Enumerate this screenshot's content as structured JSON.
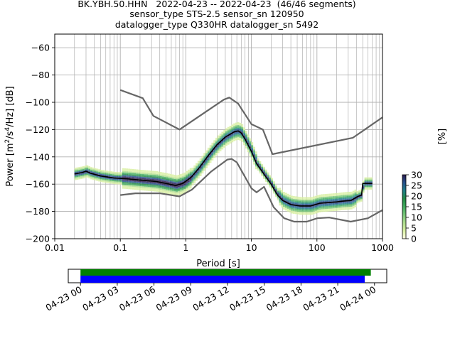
{
  "chart_data": {
    "type": "heatmap",
    "title_lines": [
      "BK.YBH.50.HHN   2022-04-23 -- 2022-04-23  (46/46 segments)",
      "sensor_type STS-2.5 sensor_sn 120950",
      "datalogger_type Q330HR datalogger_sn 5492"
    ],
    "xlabel": "Period [s]",
    "ylabel_parts": [
      "Power [m",
      "2",
      "/s",
      "4",
      "/Hz] [dB]"
    ],
    "x_scale": "log",
    "xlim": [
      0.01,
      1000
    ],
    "ylim": [
      -200,
      -50
    ],
    "x_ticks": [
      {
        "value": 0.01,
        "label": "0.01"
      },
      {
        "value": 0.1,
        "label": "0.1"
      },
      {
        "value": 1,
        "label": "1"
      },
      {
        "value": 10,
        "label": "10"
      },
      {
        "value": 100,
        "label": "100"
      },
      {
        "value": 1000,
        "label": "1000"
      }
    ],
    "y_ticks": [
      {
        "value": -60,
        "label": "−60"
      },
      {
        "value": -80,
        "label": "−80"
      },
      {
        "value": -100,
        "label": "−100"
      },
      {
        "value": -120,
        "label": "−120"
      },
      {
        "value": -140,
        "label": "−140"
      },
      {
        "value": -160,
        "label": "−160"
      },
      {
        "value": -180,
        "label": "−180"
      },
      {
        "value": -200,
        "label": "−200"
      }
    ],
    "grid": true,
    "colorbar": {
      "label": "[%]",
      "range": [
        0,
        30
      ],
      "ticks": [
        {
          "value": 0,
          "label": "0"
        },
        {
          "value": 5,
          "label": "5"
        },
        {
          "value": 10,
          "label": "10"
        },
        {
          "value": 15,
          "label": "15"
        },
        {
          "value": 20,
          "label": "20"
        },
        {
          "value": 25,
          "label": "25"
        },
        {
          "value": 30,
          "label": "30"
        }
      ],
      "colors": [
        "#ffffe5",
        "#d9f0a3",
        "#addd8e",
        "#78c679",
        "#41ab5d",
        "#238b45",
        "#1f7f85",
        "#25508c",
        "#2b1a4d"
      ]
    },
    "noise_model_color": "#666666",
    "high_noise_model": [
      [
        0.1,
        -91
      ],
      [
        0.22,
        -97
      ],
      [
        0.32,
        -110
      ],
      [
        0.8,
        -120
      ],
      [
        3.8,
        -98
      ],
      [
        4.6,
        -96.5
      ],
      [
        6.3,
        -101
      ],
      [
        7.1,
        -105
      ],
      [
        10,
        -116
      ],
      [
        15,
        -120
      ],
      [
        21,
        -138
      ],
      [
        354,
        -126
      ],
      [
        1000,
        -111
      ]
    ],
    "low_noise_model": [
      [
        0.1,
        -168
      ],
      [
        0.17,
        -166.7
      ],
      [
        0.4,
        -166.7
      ],
      [
        0.8,
        -169
      ],
      [
        1.24,
        -164
      ],
      [
        2.4,
        -151
      ],
      [
        4.3,
        -142
      ],
      [
        5,
        -141.5
      ],
      [
        6,
        -144
      ],
      [
        10,
        -163
      ],
      [
        12,
        -166
      ],
      [
        15.6,
        -162
      ],
      [
        21.9,
        -177
      ],
      [
        31.6,
        -185
      ],
      [
        45,
        -187.5
      ],
      [
        70,
        -187.5
      ],
      [
        101,
        -185
      ],
      [
        154,
        -184.5
      ],
      [
        328,
        -187.5
      ],
      [
        600,
        -185
      ],
      [
        1000,
        -179
      ]
    ],
    "mode_line_color": "#000000",
    "mode_line": [
      [
        0.02,
        -152.5
      ],
      [
        0.026,
        -151.5
      ],
      [
        0.03,
        -150.5
      ],
      [
        0.035,
        -152
      ],
      [
        0.05,
        -154
      ],
      [
        0.08,
        -155.5
      ],
      [
        0.12,
        -156
      ],
      [
        0.2,
        -157
      ],
      [
        0.35,
        -158
      ],
      [
        0.5,
        -159.5
      ],
      [
        0.7,
        -161
      ],
      [
        0.9,
        -159.5
      ],
      [
        1.2,
        -155
      ],
      [
        1.6,
        -148
      ],
      [
        2.2,
        -139
      ],
      [
        3,
        -131
      ],
      [
        4,
        -125.5
      ],
      [
        5.5,
        -121.5
      ],
      [
        6.3,
        -121
      ],
      [
        7,
        -122.5
      ],
      [
        8,
        -127
      ],
      [
        10,
        -136
      ],
      [
        12,
        -145
      ],
      [
        16,
        -153.5
      ],
      [
        20,
        -160
      ],
      [
        25,
        -168
      ],
      [
        30,
        -172
      ],
      [
        40,
        -175
      ],
      [
        55,
        -176
      ],
      [
        80,
        -176
      ],
      [
        110,
        -174
      ],
      [
        150,
        -173.5
      ],
      [
        200,
        -173
      ],
      [
        240,
        -172.5
      ],
      [
        330,
        -172
      ],
      [
        420,
        -169
      ],
      [
        480,
        -168
      ],
      [
        500,
        -159.5
      ],
      [
        700,
        -159.5
      ]
    ],
    "density_bands": [
      {
        "x_from": 0.1,
        "x_to": 1.2,
        "center_dy": [
          [
            0.1,
            -157
          ],
          [
            0.4,
            -158.5
          ],
          [
            0.9,
            -160
          ]
        ],
        "spread": 7
      },
      {
        "x_from": 1.2,
        "x_to": 12,
        "center_dy": [
          [
            1.2,
            -154
          ],
          [
            3,
            -131
          ],
          [
            6.3,
            -121
          ],
          [
            10,
            -136
          ]
        ],
        "spread": 6
      },
      {
        "x_from": 25,
        "x_to": 400,
        "center_dy": [
          [
            25,
            -168
          ],
          [
            60,
            -176
          ],
          [
            200,
            -173
          ],
          [
            400,
            -170
          ]
        ],
        "spread": 6
      }
    ],
    "segment_timeline": {
      "xlim_hours": [
        -1,
        25
      ],
      "green_bar_hours": [
        0,
        23.7
      ],
      "blue_bar_hours": [
        0,
        23.2
      ],
      "green_color": "#008000",
      "blue_color": "#0000ff",
      "ticks": [
        {
          "value": 0,
          "label": "04-23 00"
        },
        {
          "value": 3,
          "label": "04-23 03"
        },
        {
          "value": 6,
          "label": "04-23 06"
        },
        {
          "value": 9,
          "label": "04-23 09"
        },
        {
          "value": 12,
          "label": "04-23 12"
        },
        {
          "value": 15,
          "label": "04-23 15"
        },
        {
          "value": 18,
          "label": "04-23 18"
        },
        {
          "value": 21,
          "label": "04-23 21"
        },
        {
          "value": 24,
          "label": "04-24 00"
        }
      ]
    }
  }
}
